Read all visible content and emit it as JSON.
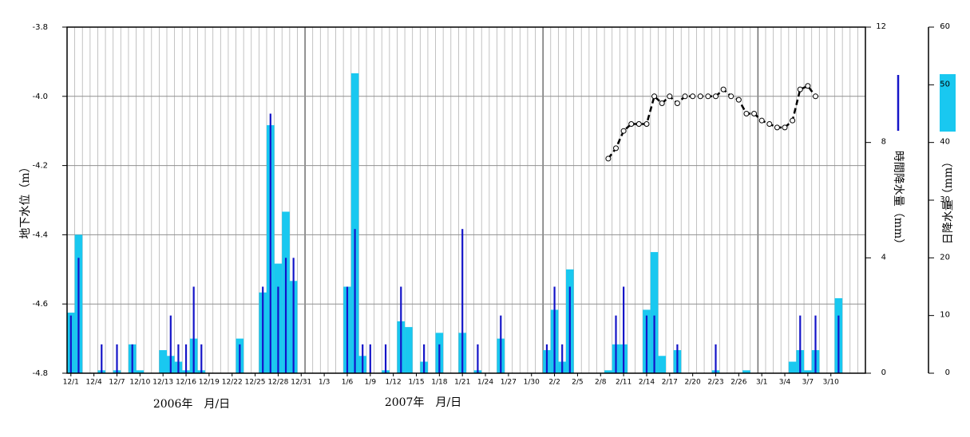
{
  "chart_data": {
    "type": "bar-line",
    "ylabel": "地下水位（m）",
    "y2label": "時間降水量（mm）",
    "y3label": "日降水量（mm）",
    "xlabels": [
      "2006年　月/日",
      "2007年　月/日"
    ],
    "ylim": [
      -4.8,
      -3.8
    ],
    "yticks": [
      -4.8,
      -4.6,
      -4.4,
      -4.2,
      {
        "value": -4,
        "label": "-4.0"
      },
      -3.8
    ],
    "y2lim": [
      0,
      12
    ],
    "y2ticks": [
      0,
      4,
      8,
      12
    ],
    "y3lim": [
      0,
      60
    ],
    "y3ticks": [
      0,
      10,
      20,
      30,
      40,
      50,
      60
    ],
    "grid": true,
    "categories": [
      "12/1",
      null,
      null,
      "12/4",
      null,
      null,
      "12/7",
      null,
      null,
      "12/10",
      null,
      null,
      "12/13",
      null,
      null,
      "12/16",
      null,
      null,
      "12/19",
      null,
      null,
      "12/22",
      null,
      null,
      "12/25",
      null,
      null,
      "12/28",
      null,
      null,
      "12/31",
      null,
      null,
      "1/3",
      null,
      null,
      "1/6",
      null,
      null,
      "1/9",
      null,
      null,
      "1/12",
      null,
      null,
      "1/15",
      null,
      null,
      "1/18",
      null,
      null,
      "1/21",
      null,
      null,
      "1/24",
      null,
      null,
      "1/27",
      null,
      null,
      "1/30",
      null,
      null,
      "2/2",
      null,
      null,
      "2/5",
      null,
      null,
      "2/8",
      null,
      null,
      "2/11",
      null,
      null,
      "2/14",
      null,
      null,
      "2/17",
      null,
      null,
      "2/20",
      null,
      null,
      "2/23",
      null,
      null,
      "2/26",
      null,
      null,
      "3/1",
      null,
      null,
      "3/4",
      null,
      null,
      "3/7",
      null,
      null,
      "3/10",
      null,
      null,
      null,
      null
    ],
    "series": [
      {
        "type": "bar",
        "axis": "y3",
        "color": "#19c8f0",
        "values": [
          10.5,
          24,
          null,
          null,
          0.5,
          null,
          0.5,
          null,
          5,
          0.5,
          null,
          null,
          4,
          3,
          2,
          0.5,
          6,
          0.5,
          null,
          null,
          null,
          null,
          6,
          null,
          null,
          14,
          43,
          19,
          28,
          16,
          null,
          null,
          null,
          null,
          null,
          null,
          15,
          52,
          3,
          null,
          null,
          0.5,
          null,
          9,
          8,
          null,
          2,
          null,
          7,
          null,
          null,
          7,
          null,
          0.5,
          null,
          null,
          6,
          null,
          null,
          null,
          null,
          null,
          4,
          11,
          2,
          18,
          null,
          null,
          null,
          null,
          0.5,
          5,
          5,
          null,
          null,
          11,
          21,
          3,
          null,
          4,
          null,
          null,
          null,
          null,
          0.5,
          null,
          null,
          null,
          0.5,
          null,
          null,
          null,
          null,
          null,
          2,
          4,
          0.5,
          4,
          null,
          null,
          13,
          null,
          null,
          null
        ]
      },
      {
        "type": "bar",
        "axis": "y2",
        "color": "#1414c8",
        "values": [
          2,
          4,
          null,
          null,
          1,
          null,
          1,
          null,
          1,
          null,
          null,
          null,
          null,
          2,
          1,
          1,
          3,
          1,
          null,
          null,
          null,
          null,
          1,
          null,
          null,
          3,
          9,
          3,
          4,
          4,
          null,
          null,
          null,
          null,
          null,
          null,
          3,
          5,
          1,
          1,
          null,
          1,
          null,
          3,
          null,
          null,
          1,
          null,
          1,
          null,
          null,
          5,
          null,
          1,
          null,
          null,
          2,
          null,
          null,
          null,
          null,
          null,
          1,
          3,
          1,
          3,
          null,
          null,
          null,
          null,
          null,
          2,
          3,
          null,
          null,
          2,
          2,
          null,
          null,
          1,
          null,
          null,
          null,
          null,
          1,
          null,
          null,
          null,
          null,
          null,
          null,
          null,
          null,
          null,
          null,
          2,
          null,
          2,
          null,
          null,
          2,
          null,
          null,
          null
        ]
      },
      {
        "type": "line",
        "axis": "y",
        "color": "#000000",
        "values": [
          null,
          null,
          null,
          null,
          null,
          null,
          null,
          null,
          null,
          null,
          null,
          null,
          null,
          null,
          null,
          null,
          null,
          null,
          null,
          null,
          null,
          null,
          null,
          null,
          null,
          null,
          null,
          null,
          null,
          null,
          null,
          null,
          null,
          null,
          null,
          null,
          null,
          null,
          null,
          null,
          null,
          null,
          null,
          null,
          null,
          null,
          null,
          null,
          null,
          null,
          null,
          null,
          null,
          null,
          null,
          null,
          null,
          null,
          null,
          null,
          null,
          null,
          null,
          null,
          null,
          null,
          null,
          null,
          null,
          null,
          -4.18,
          -4.15,
          -4.1,
          -4.08,
          -4.08,
          -4.08,
          -4,
          -4.02,
          -4,
          -4.02,
          -4,
          -4,
          -4,
          -4,
          -4,
          -3.98,
          -4,
          -4.01,
          -4.05,
          -4.05,
          -4.07,
          -4.08,
          -4.09,
          -4.09,
          -4.07,
          -3.98,
          -3.97,
          -4,
          null,
          null,
          null,
          null,
          null,
          null
        ]
      }
    ]
  }
}
